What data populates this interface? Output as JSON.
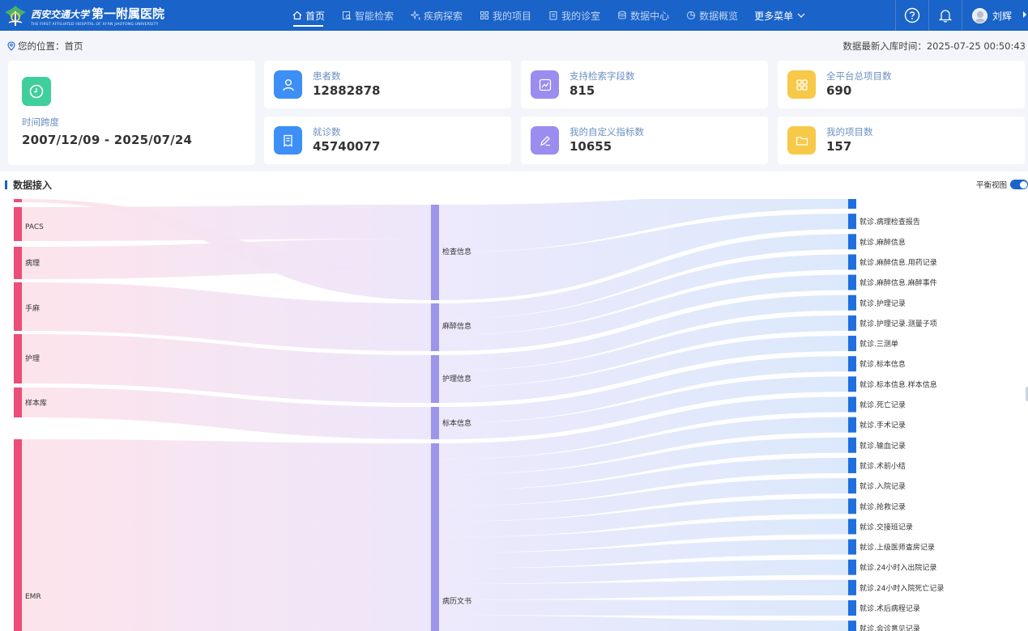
{
  "header": {
    "logo_cn_university": "西安交通大学",
    "logo_cn_hospital": "第一附属医院",
    "logo_en": "THE FIRST AFFILIATED HOSPITAL OF XI'AN JIAOTONG UNIVERSITY",
    "nav": [
      {
        "label": "首页",
        "icon": "home-icon",
        "active": true
      },
      {
        "label": "智能检索",
        "icon": "search-doc-icon",
        "active": false
      },
      {
        "label": "疾病探索",
        "icon": "sparkle-icon",
        "active": false
      },
      {
        "label": "我的项目",
        "icon": "grid-icon",
        "active": false
      },
      {
        "label": "我的诊室",
        "icon": "clipboard-icon",
        "active": false
      },
      {
        "label": "数据中心",
        "icon": "database-icon",
        "active": false
      },
      {
        "label": "数据概览",
        "icon": "pie-icon",
        "active": false
      }
    ],
    "more_label": "更多菜单",
    "help_icon": "help-circle-icon",
    "bell_icon": "bell-icon",
    "user_name": "刘辉"
  },
  "location": {
    "label": "您的位置：首页",
    "update_time": "数据最新入库时间：2025-07-25 00:50:43"
  },
  "time_card": {
    "label": "时间跨度",
    "value": "2007/12/09 - 2025/07/24",
    "icon": "clock-icon",
    "color": "#3fcf9c"
  },
  "stats": [
    {
      "label": "患者数",
      "value": "12882878",
      "icon": "person-icon",
      "color": "#3d8ff5"
    },
    {
      "label": "支持检索字段数",
      "value": "815",
      "icon": "trend-chart-icon",
      "color": "#9b8cf0"
    },
    {
      "label": "全平台总项目数",
      "value": "690",
      "icon": "apps-icon",
      "color": "#f7c948"
    },
    {
      "label": "就诊数",
      "value": "45740077",
      "icon": "receipt-icon",
      "color": "#3d8ff5"
    },
    {
      "label": "我的自定义指标数",
      "value": "10655",
      "icon": "pen-icon",
      "color": "#9b8cf0"
    },
    {
      "label": "我的项目数",
      "value": "157",
      "icon": "folder-icon",
      "color": "#f7c948"
    }
  ],
  "panel": {
    "title": "数据接入",
    "balance_label": "平衡视图",
    "balance_on": true
  },
  "sankey": {
    "sources": [
      "PACS",
      "病理",
      "手麻",
      "护理",
      "样本库",
      "EMR"
    ],
    "middles": [
      "检查信息",
      "麻醉信息",
      "护理信息",
      "标本信息",
      "病历文书"
    ],
    "targets": [
      "就诊.病理检查报告",
      "就诊.麻醉信息",
      "就诊.麻醉信息.用药记录",
      "就诊.麻醉信息.麻醉事件",
      "就诊.护理记录",
      "就诊.护理记录.测量子项",
      "就诊.三测单",
      "就诊.标本信息",
      "就诊.标本信息.样本信息",
      "就诊.死亡记录",
      "就诊.手术记录",
      "就诊.输血记录",
      "就诊.术前小结",
      "就诊.入院记录",
      "就诊.抢救记录",
      "就诊.交接班记录",
      "就诊.上级医师查房记录",
      "就诊.24小时入出院记录",
      "就诊.24小时入院死亡记录",
      "就诊.术后病程记录",
      "就诊.会诊意见记录"
    ],
    "colors": {
      "source": "#ec4d79",
      "middle": "#9d95ea",
      "target": "#1f6fdf"
    }
  }
}
